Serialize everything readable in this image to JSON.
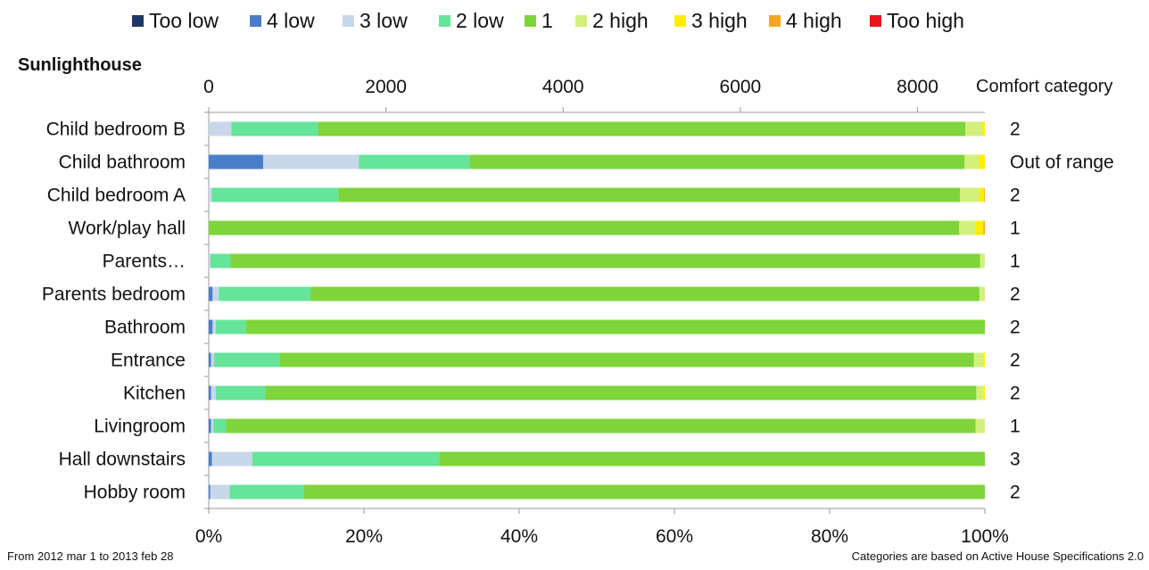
{
  "chart_data": {
    "type": "bar",
    "title": "Sunlighthouse",
    "orientation": "horizontal-stacked-100",
    "legend_position": "top",
    "grid": false,
    "top_axis": {
      "ticks": [
        0,
        2000,
        4000,
        6000,
        8000
      ],
      "range": [
        0,
        8760
      ]
    },
    "bottom_axis": {
      "ticks": [
        "0%",
        "20%",
        "40%",
        "60%",
        "80%",
        "100%"
      ],
      "range": [
        0,
        100
      ]
    },
    "comfort_header": "Comfort category",
    "categories": [
      "Child bedroom B",
      "Child bathroom",
      "Child bedroom A",
      "Work/play hall",
      "Parents…",
      "Parents bedroom",
      "Bathroom",
      "Entrance",
      "Kitchen",
      "Livingroom",
      "Hall downstairs",
      "Hobby room"
    ],
    "comfort_category": [
      "2",
      "Out of range",
      "2",
      "1",
      "1",
      "2",
      "2",
      "2",
      "2",
      "1",
      "3",
      "2"
    ],
    "series": [
      {
        "name": "Too low",
        "color": "#1f3864",
        "values": [
          0,
          0,
          0,
          0,
          0,
          0,
          0,
          0,
          0,
          0,
          0,
          0
        ]
      },
      {
        "name": "4 low",
        "color": "#4a7ec9",
        "values": [
          0,
          7,
          0,
          0,
          0,
          0.5,
          0.5,
          0.3,
          0.3,
          0.3,
          0.4,
          0.2
        ]
      },
      {
        "name": "3 low",
        "color": "#c8d7ea",
        "values": [
          2.9,
          12.3,
          0.4,
          0,
          0.2,
          0.8,
          0.4,
          0.4,
          0.6,
          0.3,
          5.2,
          2.5
        ]
      },
      {
        "name": "2 low",
        "color": "#66e49a",
        "values": [
          11.1,
          14.3,
          16.3,
          0,
          2.6,
          11.8,
          3.9,
          8.5,
          6.4,
          1.6,
          24.1,
          9.6
        ]
      },
      {
        "name": "1",
        "color": "#7ed43a",
        "values": [
          83.2,
          63.6,
          80.1,
          96.7,
          96.3,
          86.1,
          95.2,
          89.4,
          91.6,
          96.6,
          70.3,
          87.7
        ]
      },
      {
        "name": "2 high",
        "color": "#d4f07c",
        "values": [
          2.2,
          1.8,
          2.5,
          2.1,
          0.6,
          0.7,
          0,
          1.2,
          0.9,
          1.2,
          0,
          0
        ]
      },
      {
        "name": "3 high",
        "color": "#ffee00",
        "values": [
          0.3,
          0.8,
          0.6,
          1.0,
          0,
          0,
          0,
          0.2,
          0.2,
          0,
          0,
          0
        ]
      },
      {
        "name": "4 high",
        "color": "#f5a623",
        "values": [
          0,
          0,
          0.1,
          0.2,
          0,
          0,
          0,
          0,
          0,
          0,
          0,
          0
        ]
      },
      {
        "name": "Too high",
        "color": "#e8171d",
        "values": [
          0,
          0,
          0,
          0,
          0,
          0,
          0,
          0,
          0,
          0,
          0,
          0
        ]
      }
    ]
  },
  "footer": {
    "left": "From 2012 mar 1 to 2013 feb 28",
    "right": "Categories are based on Active House Specifications 2.0"
  }
}
